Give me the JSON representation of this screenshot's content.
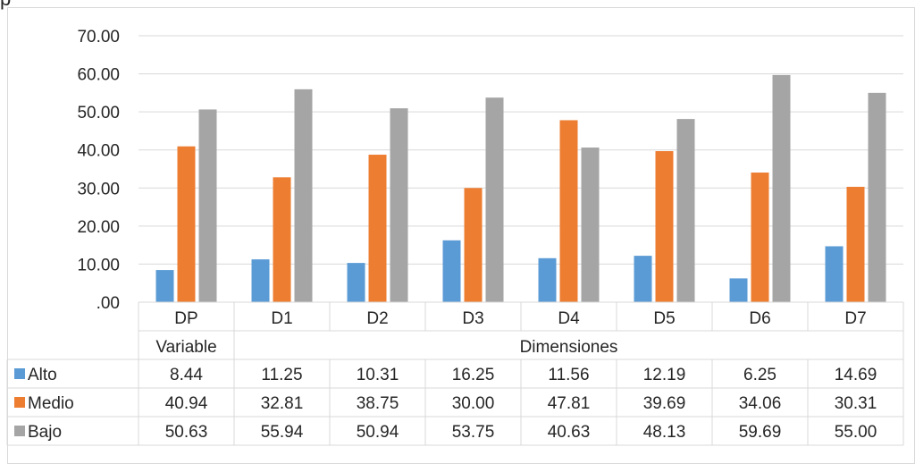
{
  "top_text": "p",
  "chart_data": {
    "type": "bar",
    "categories": [
      "DP",
      "D1",
      "D2",
      "D3",
      "D4",
      "D5",
      "D6",
      "D7"
    ],
    "groups": [
      {
        "label": "Variable",
        "categories": [
          "DP"
        ]
      },
      {
        "label": "Dimensiones",
        "categories": [
          "D1",
          "D2",
          "D3",
          "D4",
          "D5",
          "D6",
          "D7"
        ]
      }
    ],
    "series": [
      {
        "name": "Alto",
        "color": "#5B9BD5",
        "values": [
          8.44,
          11.25,
          10.31,
          16.25,
          11.56,
          12.19,
          6.25,
          14.69
        ]
      },
      {
        "name": "Medio",
        "color": "#ED7D31",
        "values": [
          40.94,
          32.81,
          38.75,
          30.0,
          47.81,
          39.69,
          34.06,
          30.31
        ]
      },
      {
        "name": "Bajo",
        "color": "#A5A5A5",
        "values": [
          50.63,
          55.94,
          50.94,
          53.75,
          40.63,
          48.13,
          59.69,
          55.0
        ]
      }
    ],
    "ylim": [
      0,
      70
    ],
    "yticks": [
      ".00",
      "10.00",
      "20.00",
      "30.00",
      "40.00",
      "50.00",
      "60.00",
      "70.00"
    ],
    "grid": true,
    "legend": "data-table"
  }
}
